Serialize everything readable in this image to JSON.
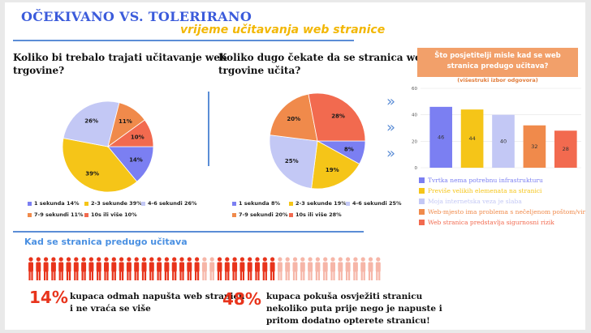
{
  "header": {
    "title": "OČEKIVANO  VS. TOLERIRANO",
    "subtitle": "vrijeme učitavanja web stranice"
  },
  "section": {
    "title": "Kad se stranica predugo učitava",
    "stat1_value": "14%",
    "stat1_text_line1": "kupaca odmah napušta web stranicu",
    "stat1_text_line2": "i ne vraća se više",
    "stat2_value": "48%",
    "stat2_text_line1": "kupaca pokuša osvježiti stranicu",
    "stat2_text_line2": "nekoliko puta prije nego je napuste i",
    "stat2_text_line3": "pritom dodatno opterete stranicu!"
  },
  "icons": {
    "people": "person-icon",
    "arrows": "chevron-right-icon"
  },
  "chart_data": [
    {
      "type": "pie",
      "title_line1": "Koliko bi trebalo trajati učitavanje web",
      "title_line2": "trgovine?",
      "slices": [
        {
          "label": "1 sekunda",
          "legend": "1 sekunda 14%",
          "value": 14,
          "value_label": "14%",
          "color": "#7b7ff2"
        },
        {
          "label": "2-3 sekunde",
          "legend": "2-3 sekunde 39%",
          "value": 39,
          "value_label": "39%",
          "color": "#f5c518"
        },
        {
          "label": "4-6 sekundi",
          "legend": "4-6 sekundi 26%",
          "value": 26,
          "value_label": "26%",
          "color": "#c3c8f5"
        },
        {
          "label": "7-9 sekundi",
          "legend": "7-9 sekundi 11%",
          "value": 11,
          "value_label": "11%",
          "color": "#f08a4b"
        },
        {
          "label": "10s ili više",
          "legend": "10s ili više 10%",
          "value": 10,
          "value_label": "10%",
          "color": "#f26a4f"
        }
      ]
    },
    {
      "type": "pie",
      "title_line1": "Koliko dugo čekate da se stranica web",
      "title_line2": "trgovine učita?",
      "slices": [
        {
          "label": "1 sekunda",
          "legend": "1 sekunda 8%",
          "value": 8,
          "value_label": "8%",
          "color": "#7b7ff2"
        },
        {
          "label": "2-3 sekunde",
          "legend": "2-3 sekunde 19%",
          "value": 19,
          "value_label": "19%",
          "color": "#f5c518"
        },
        {
          "label": "4-6 sekundi",
          "legend": "4-6 sekundi 25%",
          "value": 25,
          "value_label": "25%",
          "color": "#c3c8f5"
        },
        {
          "label": "7-9 sekundi",
          "legend": "7-9 sekundi 20%",
          "value": 20,
          "value_label": "20%",
          "color": "#f08a4b"
        },
        {
          "label": "10s ili više",
          "legend": "10s ili više 28%",
          "value": 28,
          "value_label": "28%",
          "color": "#f26a4f"
        }
      ]
    },
    {
      "type": "bar",
      "title_line1": "Što posjetitelji misle kad se web",
      "title_line2": "stranica predugo učitava?",
      "subtitle": "(višestruki izbor odgovora)",
      "ylim": [
        0,
        60
      ],
      "yticks": [
        0,
        20,
        40,
        60
      ],
      "categories": [
        "Tvrtka nema potrebnu infrastrukturu",
        "Previše velikih elemenata na stranici",
        "Moja internetska veza je slaba",
        "Web-mjesto ima problema s nečeljenom poštom/virusima",
        "Web stranica predstavlja sigurnosni rizik"
      ],
      "values": [
        46,
        44,
        40,
        32,
        28
      ],
      "colors": [
        "#7b7ff2",
        "#f5c518",
        "#c3c8f5",
        "#f08a4b",
        "#f26a4f"
      ],
      "grid": true,
      "legend_placement": "bottom"
    }
  ]
}
